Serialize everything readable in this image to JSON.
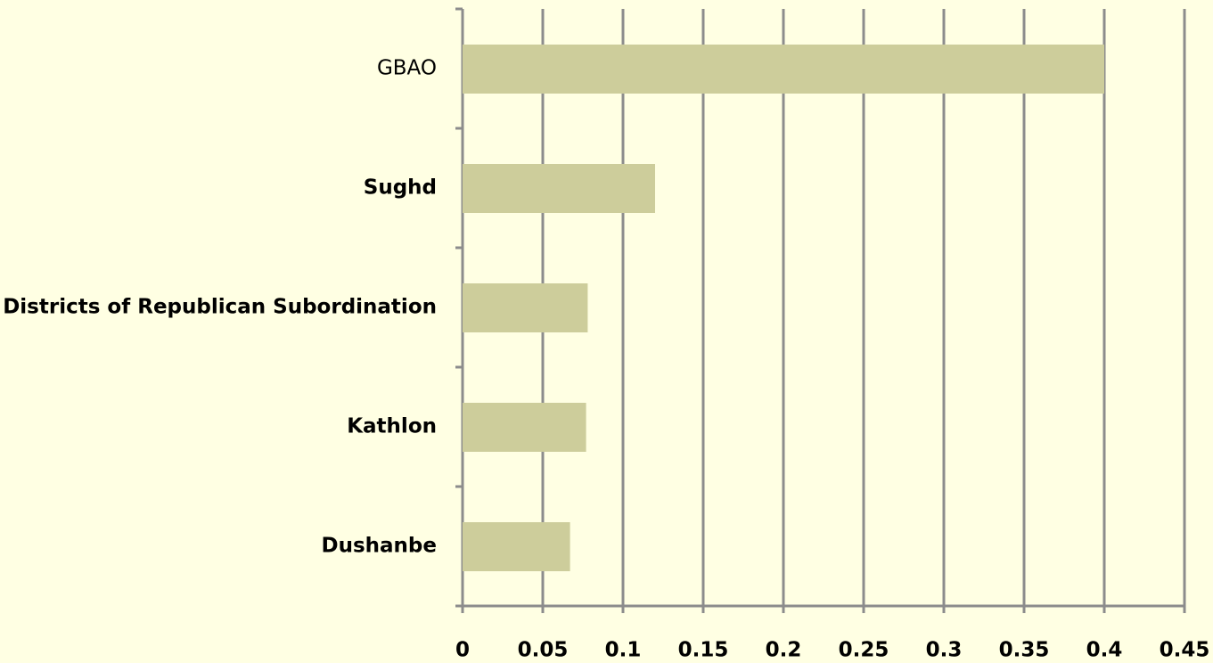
{
  "chart_data": {
    "type": "bar",
    "orientation": "horizontal",
    "categories": [
      "GBAO",
      "Sughd",
      "Districts of Republican Subordination",
      "Kathlon",
      "Dushanbe"
    ],
    "values": [
      0.4,
      0.12,
      0.078,
      0.077,
      0.067
    ],
    "color": "#cdcd9b",
    "xlim": [
      0,
      0.45
    ],
    "xticks": [
      0,
      0.05,
      0.1,
      0.15,
      0.2,
      0.25,
      0.3,
      0.35,
      0.4,
      0.45
    ],
    "grid": true
  }
}
